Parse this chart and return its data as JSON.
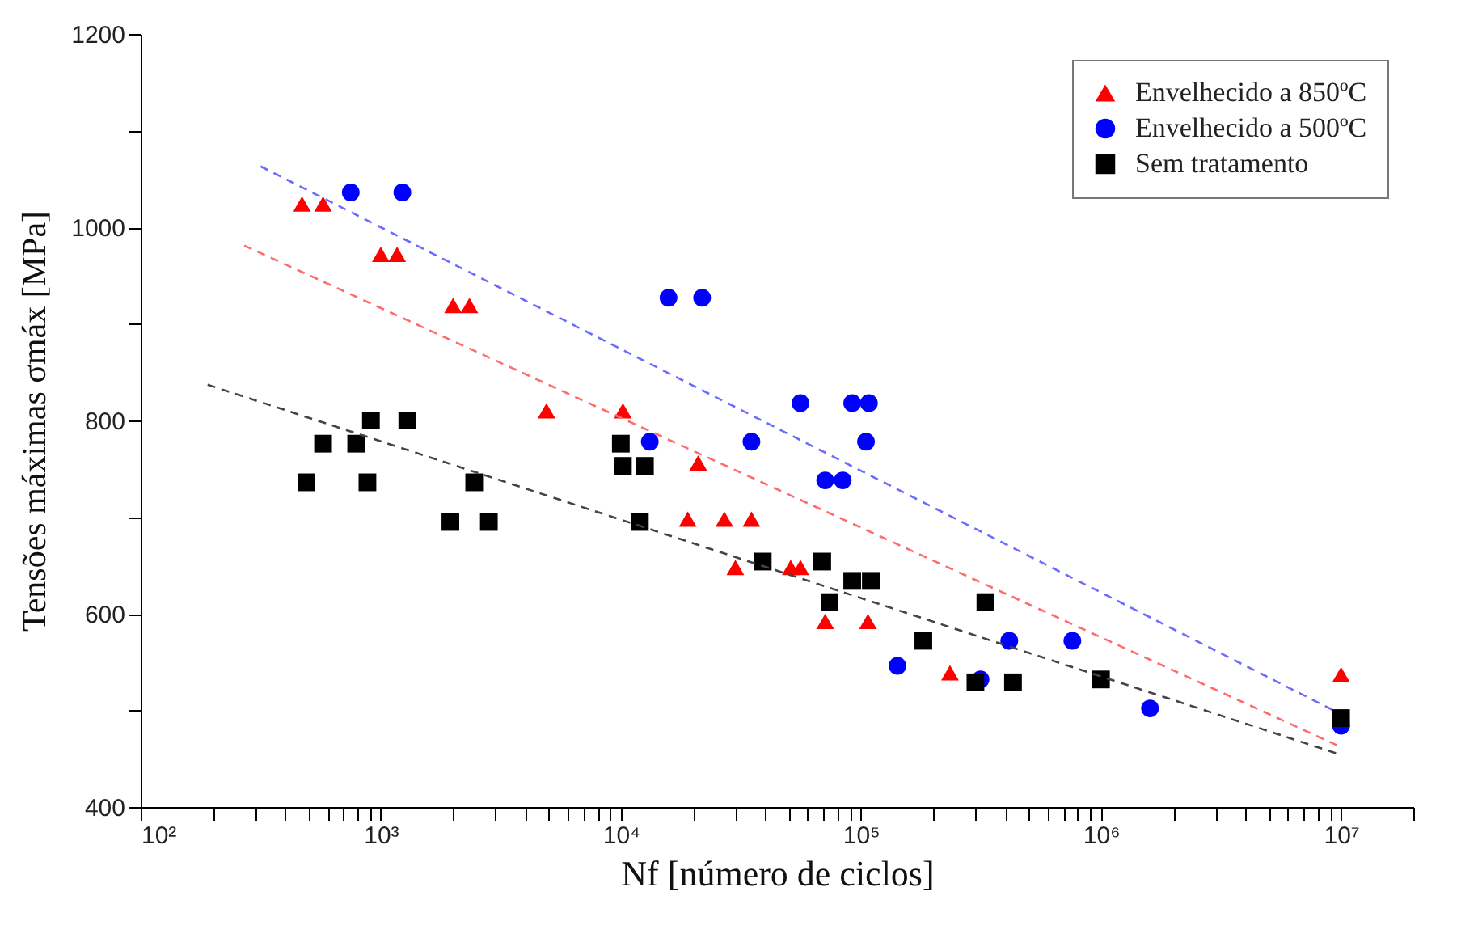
{
  "chart_data": {
    "type": "scatter",
    "xlabel": "Nf [número de ciclos]",
    "ylabel": "Tensões máximas σmáx [MPa]",
    "log": "x",
    "xlim": [
      100,
      20000000
    ],
    "ylim": [
      400,
      1200
    ],
    "xticks": [
      {
        "value": 100,
        "label": "10²"
      },
      {
        "value": 200,
        "label": null
      },
      {
        "value": 300,
        "label": null
      },
      {
        "value": 400,
        "label": null
      },
      {
        "value": 500,
        "label": null
      },
      {
        "value": 600,
        "label": null
      },
      {
        "value": 700,
        "label": null
      },
      {
        "value": 800,
        "label": null
      },
      {
        "value": 900,
        "label": null
      },
      {
        "value": 1000,
        "label": "10³"
      },
      {
        "value": 2000,
        "label": null
      },
      {
        "value": 3000,
        "label": null
      },
      {
        "value": 4000,
        "label": null
      },
      {
        "value": 5000,
        "label": null
      },
      {
        "value": 6000,
        "label": null
      },
      {
        "value": 7000,
        "label": null
      },
      {
        "value": 8000,
        "label": null
      },
      {
        "value": 9000,
        "label": null
      },
      {
        "value": 10000,
        "label": "10⁴"
      },
      {
        "value": 20000,
        "label": null
      },
      {
        "value": 30000,
        "label": null
      },
      {
        "value": 40000,
        "label": null
      },
      {
        "value": 50000,
        "label": null
      },
      {
        "value": 60000,
        "label": null
      },
      {
        "value": 70000,
        "label": null
      },
      {
        "value": 80000,
        "label": null
      },
      {
        "value": 90000,
        "label": null
      },
      {
        "value": 100000,
        "label": "10⁵"
      },
      {
        "value": 200000,
        "label": null
      },
      {
        "value": 300000,
        "label": null
      },
      {
        "value": 400000,
        "label": null
      },
      {
        "value": 500000,
        "label": null
      },
      {
        "value": 600000,
        "label": null
      },
      {
        "value": 700000,
        "label": null
      },
      {
        "value": 800000,
        "label": null
      },
      {
        "value": 900000,
        "label": null
      },
      {
        "value": 1000000,
        "label": "10⁶"
      },
      {
        "value": 2000000,
        "label": null
      },
      {
        "value": 3000000,
        "label": null
      },
      {
        "value": 4000000,
        "label": null
      },
      {
        "value": 5000000,
        "label": null
      },
      {
        "value": 6000000,
        "label": null
      },
      {
        "value": 7000000,
        "label": null
      },
      {
        "value": 8000000,
        "label": null
      },
      {
        "value": 9000000,
        "label": null
      },
      {
        "value": 10000000,
        "label": "10⁷"
      },
      {
        "value": 20000000,
        "label": null
      }
    ],
    "yticks": [
      400,
      {
        "value": 500,
        "label": null
      },
      600,
      {
        "value": 700,
        "label": null
      },
      800,
      {
        "value": 900,
        "label": null
      },
      1000,
      {
        "value": 1100,
        "label": null
      },
      1200
    ],
    "grid": false,
    "legend": "top right",
    "series": [
      {
        "name": "Envelhecido a 850ºC",
        "color": "#ff0000",
        "marker": "triangle",
        "x": [
          470,
          575,
          1000,
          1170,
          2000,
          2340,
          4900,
          10200,
          21000,
          19000,
          27000,
          35000,
          30000,
          51000,
          56000,
          71000,
          107000,
          235000,
          10000000
        ],
        "values": [
          1024,
          1024,
          972,
          972,
          919,
          919,
          810,
          810,
          756,
          698,
          698,
          698,
          648,
          648,
          648,
          592,
          592,
          539,
          537
        ]
      },
      {
        "name": "Envelhecido a 500ºC",
        "color": "#0000ff",
        "marker": "circle",
        "x": [
          750,
          1230,
          15800,
          21800,
          56000,
          92000,
          108000,
          13200,
          35000,
          105000,
          71000,
          84000,
          142000,
          415000,
          760000,
          315000,
          1600000,
          10000000
        ],
        "values": [
          1036,
          1036,
          927,
          927,
          818,
          818,
          818,
          778,
          778,
          778,
          738,
          738,
          546,
          572,
          572,
          532,
          502,
          484
        ]
      },
      {
        "name": "Sem tratamento",
        "color": "#000000",
        "marker": "square",
        "x": [
          910,
          1290,
          575,
          790,
          490,
          880,
          2450,
          1950,
          2820,
          10000,
          10200,
          12600,
          12000,
          39000,
          69000,
          92000,
          110000,
          74000,
          330000,
          182000,
          300000,
          430000,
          1000000,
          10000000
        ],
        "values": [
          800,
          800,
          776,
          776,
          736,
          736,
          736,
          695,
          695,
          776,
          753,
          753,
          695,
          654,
          654,
          634,
          634,
          612,
          612,
          572,
          529,
          529,
          532,
          492
        ]
      },
      {
        "type": "line",
        "color": "#6b6bff",
        "line_style": "dashed",
        "x": [
          316,
          9300000
        ],
        "values": [
          1063,
          500
        ]
      },
      {
        "type": "line",
        "color": "#ff6b6b",
        "line_style": "dashed",
        "x": [
          270,
          10000000
        ],
        "values": [
          981,
          462
        ]
      },
      {
        "type": "line",
        "color": "#444444",
        "line_style": "dashed",
        "x": [
          190,
          10000000
        ],
        "values": [
          837,
          454
        ]
      }
    ]
  }
}
